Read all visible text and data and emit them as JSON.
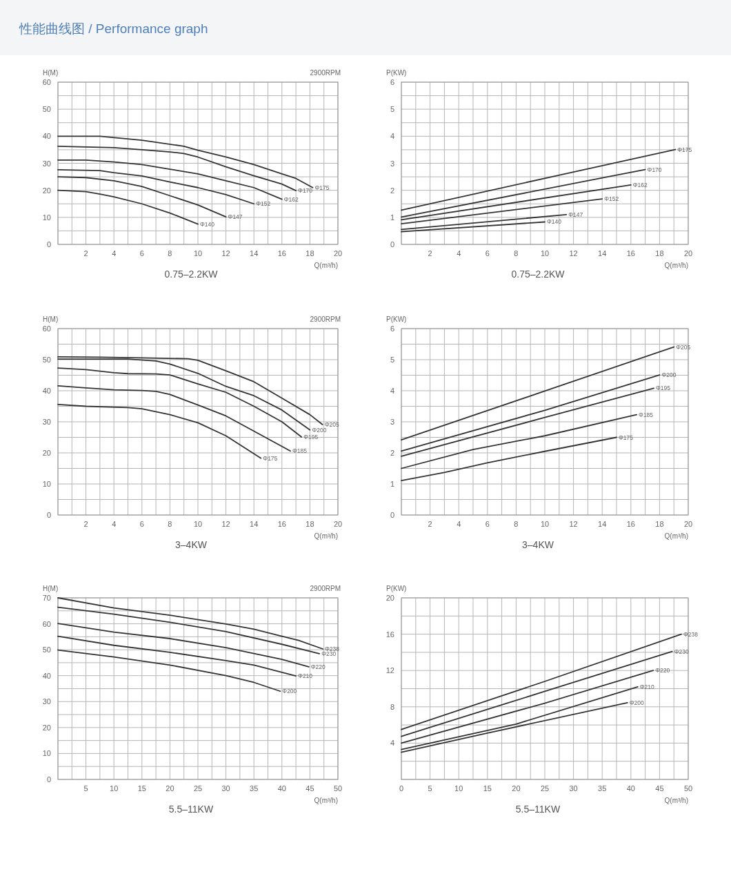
{
  "chart_data": [
    {
      "type": "other",
      "title": "性能曲线图 / Performance graph"
    },
    {
      "type": "line",
      "title": "0.75–2.2KW",
      "ylabel": "H(M)",
      "xlabel": "Q(m³/h)",
      "annotations": [
        "2900RPM"
      ],
      "grid": true,
      "xlim": [
        0,
        20
      ],
      "ylim": [
        0,
        60
      ],
      "xticks": [
        {
          "value": 0,
          "label": null
        },
        {
          "value": 1,
          "label": null
        },
        2,
        {
          "value": 3,
          "label": null
        },
        4,
        {
          "value": 5,
          "label": null
        },
        6,
        {
          "value": 7,
          "label": null
        },
        8,
        {
          "value": 9,
          "label": null
        },
        10,
        {
          "value": 11,
          "label": null
        },
        12,
        {
          "value": 13,
          "label": null
        },
        14,
        {
          "value": 15,
          "label": null
        },
        16,
        {
          "value": 17,
          "label": null
        },
        18,
        {
          "value": 19,
          "label": null
        },
        20
      ],
      "yticks": [
        0,
        {
          "value": 5,
          "label": null
        },
        10,
        {
          "value": 15,
          "label": null
        },
        20,
        {
          "value": 25,
          "label": null
        },
        30,
        {
          "value": 35,
          "label": null
        },
        40,
        {
          "value": 45,
          "label": null
        },
        50,
        {
          "value": 55,
          "label": null
        },
        60
      ],
      "series": [
        {
          "name": "Φ175",
          "color": "#333333",
          "x": [
            0,
            3,
            6,
            9,
            10,
            12,
            14,
            16,
            17,
            18.2
          ],
          "values": [
            40,
            40,
            38.5,
            36.3,
            34.8,
            32.3,
            29.5,
            26.1,
            24.4,
            21
          ]
        },
        {
          "name": "Φ170",
          "color": "#333333",
          "x": [
            0,
            4,
            6,
            8,
            9,
            10,
            12,
            14,
            16,
            17
          ],
          "values": [
            36.3,
            35.8,
            35,
            34.2,
            33.6,
            32.3,
            28.7,
            25.4,
            22.3,
            19.9
          ]
        },
        {
          "name": "Φ162",
          "color": "#333333",
          "x": [
            0,
            2,
            4,
            6,
            8,
            10,
            12,
            14,
            16
          ],
          "values": [
            31.2,
            31.2,
            30.5,
            29.5,
            27.8,
            26.1,
            23.5,
            21,
            16.7
          ]
        },
        {
          "name": "Φ152",
          "color": "#333333",
          "x": [
            0,
            3,
            4,
            6,
            8,
            10,
            12,
            14
          ],
          "values": [
            27.6,
            27.3,
            26.5,
            25.3,
            23.1,
            21,
            18.4,
            15
          ]
        },
        {
          "name": "Φ147",
          "color": "#333333",
          "x": [
            0,
            2,
            4,
            6,
            8,
            10,
            12
          ],
          "values": [
            25,
            24.7,
            23.5,
            21.4,
            18,
            14.6,
            10.2
          ]
        },
        {
          "name": "Φ140",
          "color": "#333333",
          "x": [
            0,
            2,
            3,
            4,
            6,
            8,
            10
          ],
          "values": [
            20,
            19.5,
            18.6,
            17.6,
            15,
            11.6,
            7.5
          ]
        }
      ]
    },
    {
      "type": "line",
      "title": "0.75–2.2KW",
      "ylabel": "P(KW)",
      "xlabel": "Q(m³/h)",
      "grid": true,
      "xlim": [
        0,
        20
      ],
      "ylim": [
        0,
        6
      ],
      "xticks": [
        {
          "value": 0,
          "label": null
        },
        {
          "value": 1,
          "label": null
        },
        2,
        {
          "value": 3,
          "label": null
        },
        4,
        {
          "value": 5,
          "label": null
        },
        6,
        {
          "value": 7,
          "label": null
        },
        8,
        {
          "value": 9,
          "label": null
        },
        10,
        {
          "value": 11,
          "label": null
        },
        12,
        {
          "value": 13,
          "label": null
        },
        14,
        {
          "value": 15,
          "label": null
        },
        16,
        {
          "value": 17,
          "label": null
        },
        18,
        {
          "value": 19,
          "label": null
        },
        20
      ],
      "yticks": [
        0,
        {
          "value": 0.5,
          "label": null
        },
        1,
        {
          "value": 1.5,
          "label": null
        },
        2,
        {
          "value": 2.5,
          "label": null
        },
        3,
        {
          "value": 3.5,
          "label": null
        },
        4,
        {
          "value": 4.5,
          "label": null
        },
        5,
        {
          "value": 5.5,
          "label": null
        },
        6
      ],
      "series": [
        {
          "name": "Φ175",
          "color": "#333333",
          "x": [
            0,
            19.1
          ],
          "values": [
            1.27,
            3.51
          ]
        },
        {
          "name": "Φ170",
          "color": "#333333",
          "x": [
            0,
            17
          ],
          "values": [
            1.01,
            2.77
          ]
        },
        {
          "name": "Φ162",
          "color": "#333333",
          "x": [
            0,
            16
          ],
          "values": [
            0.91,
            2.2
          ]
        },
        {
          "name": "Φ152",
          "color": "#333333",
          "x": [
            0,
            14
          ],
          "values": [
            0.76,
            1.68
          ]
        },
        {
          "name": "Φ147",
          "color": "#333333",
          "x": [
            0,
            11.5
          ],
          "values": [
            0.55,
            1.1
          ]
        },
        {
          "name": "Φ140",
          "color": "#333333",
          "x": [
            0,
            10
          ],
          "values": [
            0.47,
            0.83
          ]
        }
      ]
    },
    {
      "type": "line",
      "title": "3–4KW",
      "ylabel": "H(M)",
      "xlabel": "Q(m³/h)",
      "annotations": [
        "2900RPM"
      ],
      "grid": true,
      "xlim": [
        0,
        20
      ],
      "ylim": [
        0,
        60
      ],
      "xticks": [
        {
          "value": 0,
          "label": null
        },
        {
          "value": 1,
          "label": null
        },
        2,
        {
          "value": 3,
          "label": null
        },
        4,
        {
          "value": 5,
          "label": null
        },
        6,
        {
          "value": 7,
          "label": null
        },
        8,
        {
          "value": 9,
          "label": null
        },
        10,
        {
          "value": 11,
          "label": null
        },
        12,
        {
          "value": 13,
          "label": null
        },
        14,
        {
          "value": 15,
          "label": null
        },
        16,
        {
          "value": 17,
          "label": null
        },
        18,
        {
          "value": 19,
          "label": null
        },
        20
      ],
      "yticks": [
        0,
        {
          "value": 5,
          "label": null
        },
        10,
        {
          "value": 15,
          "label": null
        },
        20,
        {
          "value": 25,
          "label": null
        },
        30,
        {
          "value": 35,
          "label": null
        },
        40,
        {
          "value": 45,
          "label": null
        },
        50,
        {
          "value": 55,
          "label": null
        },
        60
      ],
      "series": [
        {
          "name": "Φ205",
          "color": "#333333",
          "x": [
            0,
            3,
            6,
            9.3,
            10,
            12,
            14,
            16,
            18,
            18.9
          ],
          "values": [
            50.9,
            50.8,
            50.6,
            50.3,
            49.8,
            46.4,
            42.9,
            37.6,
            32.3,
            29.1
          ]
        },
        {
          "name": "Φ200",
          "color": "#333333",
          "x": [
            0,
            5,
            7,
            8,
            10,
            12,
            14,
            16,
            18
          ],
          "values": [
            50.2,
            50.2,
            49.6,
            48.6,
            45.6,
            41.4,
            38.4,
            33.8,
            27.4
          ]
        },
        {
          "name": "Φ195",
          "color": "#333333",
          "x": [
            0,
            2,
            4,
            5,
            7,
            8,
            10,
            12,
            14,
            16,
            17.4
          ],
          "values": [
            47.3,
            46.8,
            45.8,
            45.5,
            45.4,
            45.1,
            42.2,
            39.5,
            35,
            30,
            25.1
          ]
        },
        {
          "name": "Φ185",
          "color": "#333333",
          "x": [
            0,
            2,
            4,
            6,
            7,
            8,
            10,
            12,
            14,
            16.6
          ],
          "values": [
            41.6,
            40.9,
            40.3,
            40.1,
            39.8,
            38.8,
            35.4,
            31.9,
            27,
            20.6
          ]
        },
        {
          "name": "Φ175",
          "color": "#333333",
          "x": [
            0,
            2,
            5,
            6,
            8,
            10,
            12,
            14.5
          ],
          "values": [
            35.6,
            35,
            34.6,
            34.2,
            32.3,
            29.7,
            25.5,
            18.3
          ]
        }
      ]
    },
    {
      "type": "line",
      "title": "3–4KW",
      "ylabel": "P(KW)",
      "xlabel": "Q(m³/h)",
      "grid": true,
      "xlim": [
        0,
        20
      ],
      "ylim": [
        0,
        6
      ],
      "xticks": [
        {
          "value": 0,
          "label": null
        },
        {
          "value": 1,
          "label": null
        },
        2,
        {
          "value": 3,
          "label": null
        },
        4,
        {
          "value": 5,
          "label": null
        },
        6,
        {
          "value": 7,
          "label": null
        },
        8,
        {
          "value": 9,
          "label": null
        },
        10,
        {
          "value": 11,
          "label": null
        },
        12,
        {
          "value": 13,
          "label": null
        },
        14,
        {
          "value": 15,
          "label": null
        },
        16,
        {
          "value": 17,
          "label": null
        },
        18,
        {
          "value": 19,
          "label": null
        },
        20
      ],
      "yticks": [
        0,
        {
          "value": 0.5,
          "label": null
        },
        1,
        {
          "value": 1.5,
          "label": null
        },
        2,
        {
          "value": 2.5,
          "label": null
        },
        3,
        {
          "value": 3.5,
          "label": null
        },
        4,
        {
          "value": 4.5,
          "label": null
        },
        5,
        {
          "value": 5.5,
          "label": null
        },
        6
      ],
      "series": [
        {
          "name": "Φ205",
          "color": "#333333",
          "x": [
            0,
            10,
            19
          ],
          "values": [
            2.42,
            3.99,
            5.41
          ]
        },
        {
          "name": "Φ200",
          "color": "#333333",
          "x": [
            0,
            10,
            18
          ],
          "values": [
            2.06,
            3.37,
            4.51
          ]
        },
        {
          "name": "Φ195",
          "color": "#333333",
          "x": [
            0,
            10,
            17.6
          ],
          "values": [
            1.89,
            3.14,
            4.08
          ]
        },
        {
          "name": "Φ185",
          "color": "#333333",
          "x": [
            0,
            5,
            10,
            16.4
          ],
          "values": [
            1.5,
            2.11,
            2.55,
            3.23
          ]
        },
        {
          "name": "Φ175",
          "color": "#333333",
          "x": [
            0,
            3,
            6,
            10,
            15
          ],
          "values": [
            1.11,
            1.37,
            1.68,
            2.05,
            2.5
          ]
        }
      ]
    },
    {
      "type": "line",
      "title": "5.5–11KW",
      "ylabel": "H(M)",
      "xlabel": "Q(m³/h)",
      "annotations": [
        "2900RPM"
      ],
      "grid": true,
      "xlim": [
        0,
        50
      ],
      "ylim": [
        0,
        70
      ],
      "xticks": [
        {
          "value": 0,
          "label": null
        },
        {
          "value": 2.5,
          "label": null
        },
        5,
        {
          "value": 7.5,
          "label": null
        },
        10,
        {
          "value": 12.5,
          "label": null
        },
        15,
        {
          "value": 17.5,
          "label": null
        },
        20,
        {
          "value": 22.5,
          "label": null
        },
        25,
        {
          "value": 27.5,
          "label": null
        },
        30,
        {
          "value": 32.5,
          "label": null
        },
        35,
        {
          "value": 37.5,
          "label": null
        },
        40,
        {
          "value": 42.5,
          "label": null
        },
        45,
        {
          "value": 47.5,
          "label": null
        },
        50
      ],
      "yticks": [
        0,
        {
          "value": 5,
          "label": null
        },
        10,
        {
          "value": 15,
          "label": null
        },
        20,
        {
          "value": 25,
          "label": null
        },
        30,
        {
          "value": 35,
          "label": null
        },
        40,
        {
          "value": 45,
          "label": null
        },
        50,
        {
          "value": 55,
          "label": null
        },
        60,
        {
          "value": 65,
          "label": null
        },
        70
      ],
      "series": [
        {
          "name": "Φ238",
          "color": "#333333",
          "x": [
            0,
            10,
            20,
            30,
            35,
            40,
            43,
            47.3
          ],
          "values": [
            70,
            66.1,
            63.3,
            59.9,
            57.9,
            55.2,
            53.6,
            50.3
          ]
        },
        {
          "name": "Φ230",
          "color": "#333333",
          "x": [
            0,
            10,
            20,
            30,
            40,
            46.7
          ],
          "values": [
            66.4,
            63.7,
            60.6,
            57,
            52.1,
            48.5
          ]
        },
        {
          "name": "Φ220",
          "color": "#333333",
          "x": [
            0,
            10,
            20,
            30,
            40,
            44.8
          ],
          "values": [
            60.1,
            56.8,
            54.3,
            50.8,
            46.3,
            43.4
          ]
        },
        {
          "name": "Φ210",
          "color": "#333333",
          "x": [
            0,
            10,
            20,
            30,
            35,
            42.5
          ],
          "values": [
            55.2,
            51.7,
            49,
            45.8,
            44.1,
            39.9
          ]
        },
        {
          "name": "Φ200",
          "color": "#333333",
          "x": [
            0,
            10,
            20,
            30,
            35,
            39.7
          ],
          "values": [
            49.9,
            47.2,
            44.1,
            40,
            37.4,
            34
          ]
        }
      ]
    },
    {
      "type": "line",
      "title": "5.5–11KW",
      "ylabel": "P(KW)",
      "xlabel": "Q(m³/h)",
      "grid": true,
      "xlim": [
        0,
        50
      ],
      "ylim": [
        0,
        20
      ],
      "xticks": [
        0,
        {
          "value": 2.5,
          "label": null
        },
        5,
        {
          "value": 7.5,
          "label": null
        },
        10,
        {
          "value": 12.5,
          "label": null
        },
        15,
        {
          "value": 17.5,
          "label": null
        },
        20,
        {
          "value": 22.5,
          "label": null
        },
        25,
        {
          "value": 27.5,
          "label": null
        },
        30,
        {
          "value": 32.5,
          "label": null
        },
        35,
        {
          "value": 37.5,
          "label": null
        },
        40,
        {
          "value": 42.5,
          "label": null
        },
        45,
        {
          "value": 47.5,
          "label": null
        },
        50
      ],
      "yticks": [
        {
          "value": 0,
          "label": null
        },
        {
          "value": 2,
          "label": null
        },
        4,
        {
          "value": 6,
          "label": null
        },
        8,
        {
          "value": 10,
          "label": null
        },
        12,
        {
          "value": 14,
          "label": null
        },
        16,
        {
          "value": 18,
          "label": null
        },
        20
      ],
      "series": [
        {
          "name": "Φ238",
          "color": "#333333",
          "x": [
            0,
            25,
            48.8
          ],
          "values": [
            5.5,
            10.8,
            16
          ]
        },
        {
          "name": "Φ230",
          "color": "#333333",
          "x": [
            0,
            25,
            47.2
          ],
          "values": [
            4.75,
            9.7,
            14.1
          ]
        },
        {
          "name": "Φ220",
          "color": "#333333",
          "x": [
            0,
            25,
            43.9
          ],
          "values": [
            4,
            8.4,
            12
          ]
        },
        {
          "name": "Φ210",
          "color": "#333333",
          "x": [
            0,
            20,
            41.2
          ],
          "values": [
            3.3,
            6.1,
            10.2
          ]
        },
        {
          "name": "Φ200",
          "color": "#333333",
          "x": [
            0,
            15,
            39.4
          ],
          "values": [
            3,
            5.1,
            8.45
          ]
        }
      ]
    }
  ]
}
